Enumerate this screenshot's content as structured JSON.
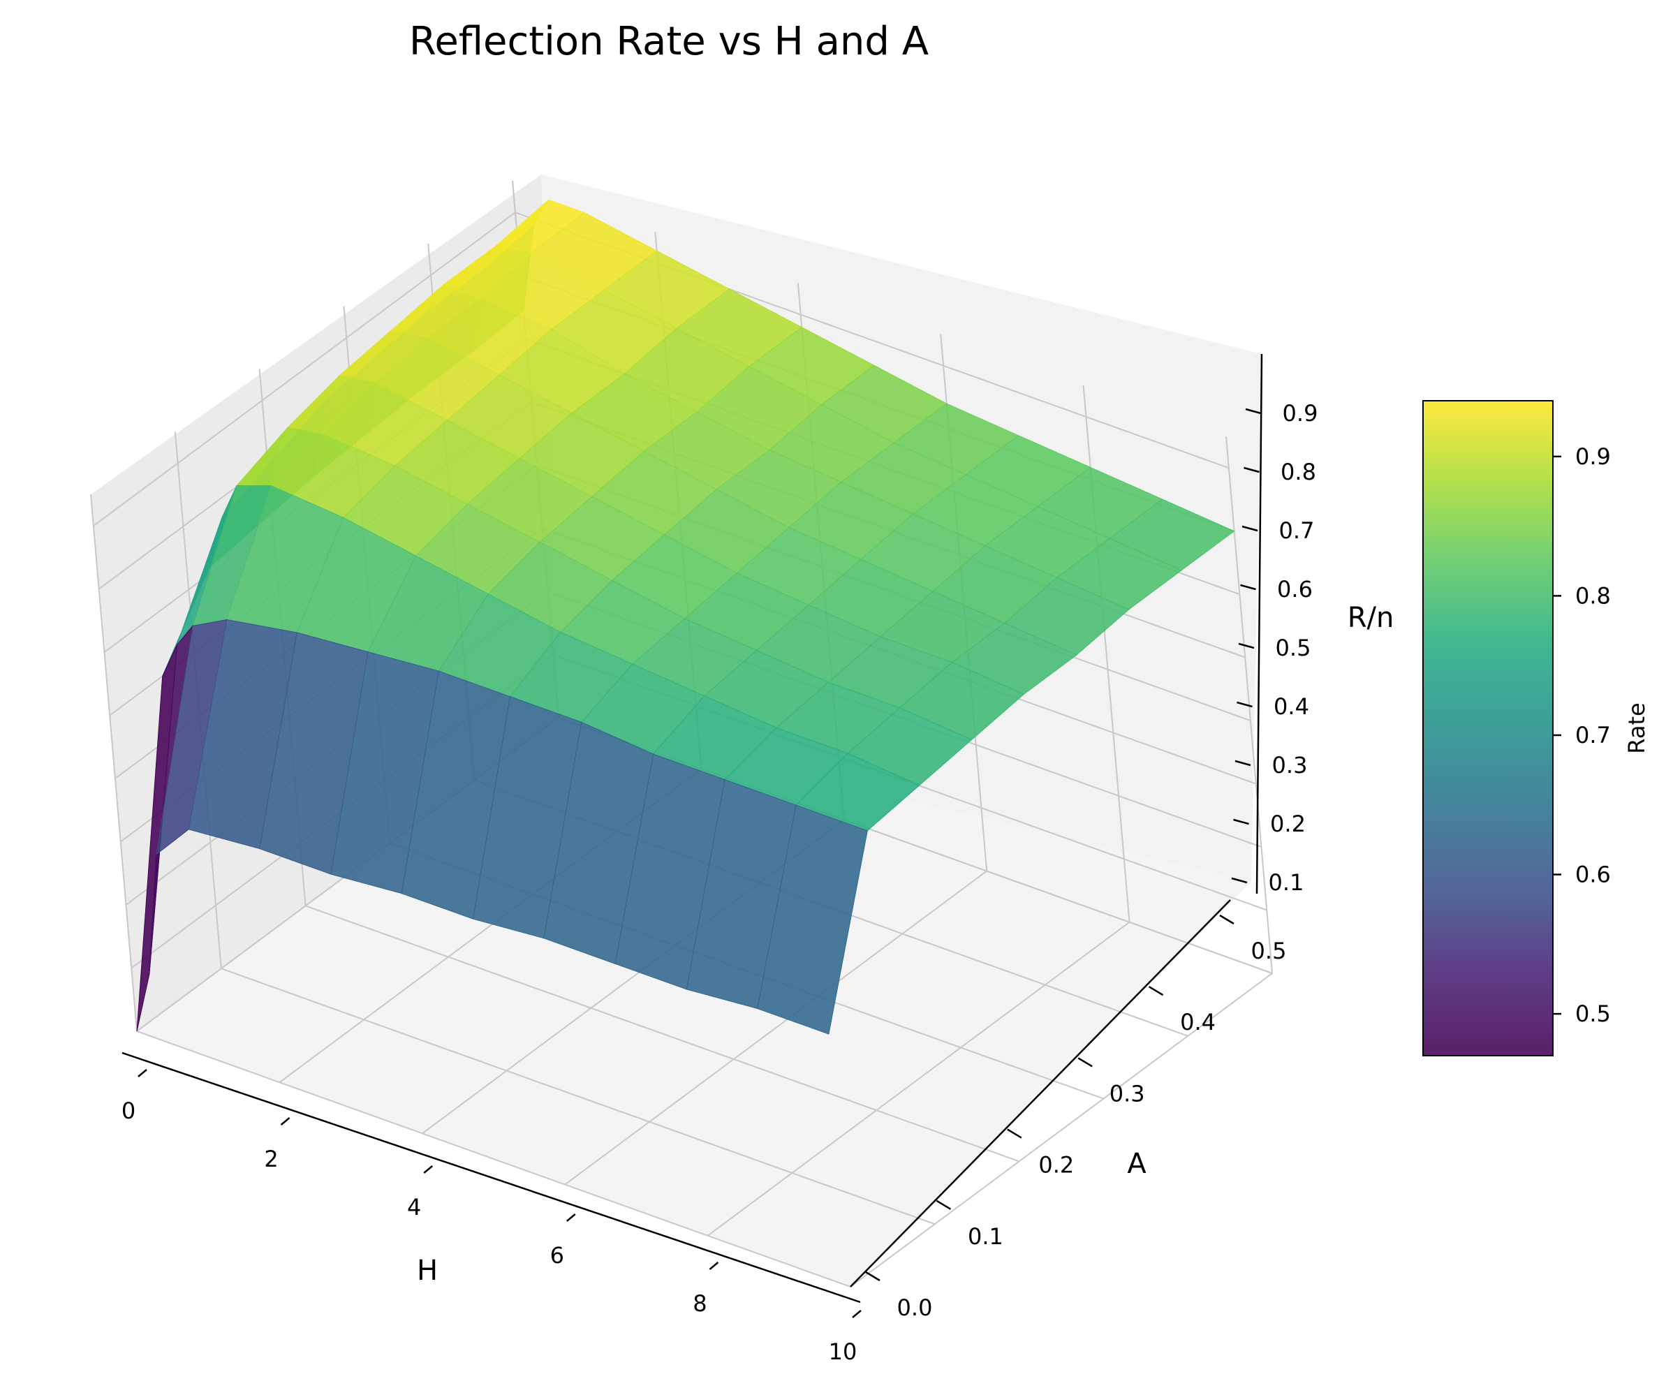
{
  "chart_data": {
    "type": "surface3d",
    "title": "Reflection Rate vs H and A",
    "xlabel": "H",
    "ylabel": "A",
    "zlabel": "R/n",
    "colorbar_label": "Rate",
    "colormap": "viridis",
    "xlim": [
      0,
      10
    ],
    "ylim": [
      0,
      0.5
    ],
    "zlim": [
      0.1,
      0.9
    ],
    "x_ticks": [
      "0",
      "2",
      "4",
      "6",
      "8",
      "10"
    ],
    "y_ticks": [
      "0.0",
      "0.1",
      "0.2",
      "0.3",
      "0.4",
      "0.5"
    ],
    "z_ticks": [
      "0.1",
      "0.2",
      "0.3",
      "0.4",
      "0.5",
      "0.6",
      "0.7",
      "0.8",
      "0.9"
    ],
    "colorbar_ticks": [
      "0.5",
      "0.6",
      "0.7",
      "0.8",
      "0.9"
    ],
    "colorbar_range": [
      0.47,
      0.94
    ],
    "H": [
      0.0,
      0.25,
      0.5,
      1,
      2,
      3,
      4,
      5,
      6,
      7,
      8,
      9,
      10
    ],
    "A": [
      0.0,
      0.0625,
      0.125,
      0.1875,
      0.25,
      0.3125,
      0.375,
      0.4375,
      0.5
    ],
    "R": [
      [
        0.05,
        0.6,
        0.71,
        0.72,
        0.73,
        0.735,
        0.74,
        0.74,
        0.745
      ],
      [
        0.2,
        0.66,
        0.8,
        0.83,
        0.86,
        0.87,
        0.88,
        0.88,
        0.89
      ],
      [
        0.4,
        0.7,
        0.86,
        0.89,
        0.91,
        0.92,
        0.93,
        0.93,
        0.94
      ],
      [
        0.46,
        0.73,
        0.88,
        0.9,
        0.92,
        0.93,
        0.93,
        0.94,
        0.94
      ],
      [
        0.47,
        0.75,
        0.87,
        0.89,
        0.9,
        0.91,
        0.92,
        0.92,
        0.92
      ],
      [
        0.47,
        0.76,
        0.85,
        0.87,
        0.88,
        0.89,
        0.89,
        0.9,
        0.9
      ],
      [
        0.48,
        0.77,
        0.83,
        0.85,
        0.86,
        0.87,
        0.87,
        0.88,
        0.88
      ],
      [
        0.48,
        0.77,
        0.81,
        0.83,
        0.84,
        0.85,
        0.85,
        0.86,
        0.86
      ],
      [
        0.49,
        0.77,
        0.8,
        0.81,
        0.82,
        0.83,
        0.84,
        0.84,
        0.84
      ],
      [
        0.49,
        0.76,
        0.79,
        0.8,
        0.81,
        0.82,
        0.83,
        0.83,
        0.83
      ],
      [
        0.49,
        0.76,
        0.78,
        0.79,
        0.8,
        0.81,
        0.82,
        0.82,
        0.82
      ],
      [
        0.5,
        0.76,
        0.78,
        0.79,
        0.8,
        0.8,
        0.81,
        0.81,
        0.81
      ],
      [
        0.5,
        0.76,
        0.77,
        0.78,
        0.79,
        0.79,
        0.8,
        0.8,
        0.8
      ]
    ]
  }
}
